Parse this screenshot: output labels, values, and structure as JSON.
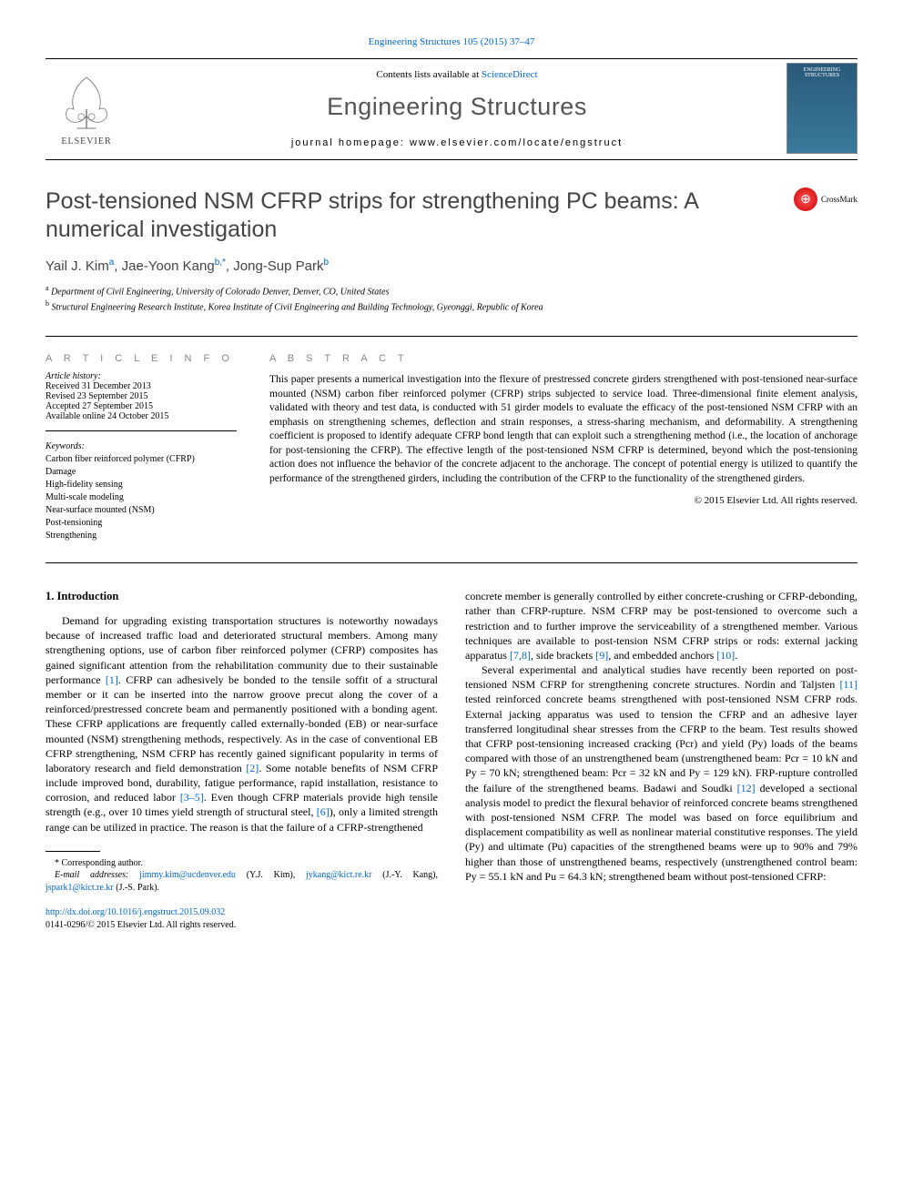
{
  "citation": {
    "text": "Engineering Structures 105 (2015) 37–47",
    "link_color": "#0066cc"
  },
  "header": {
    "contents_prefix": "Contents lists available at ",
    "contents_link": "ScienceDirect",
    "journal_name": "Engineering Structures",
    "homepage_label": "journal homepage: ",
    "homepage_url": "www.elsevier.com/locate/engstruct",
    "elsevier_label": "ELSEVIER",
    "cover_text_top": "ENGINEERING",
    "cover_text_bottom": "STRUCTURES"
  },
  "crossmark": {
    "label": "CrossMark"
  },
  "title": "Post-tensioned NSM CFRP strips for strengthening PC beams: A numerical investigation",
  "authors_html": "Yail J. Kim ",
  "authors": [
    {
      "name": "Yail J. Kim",
      "affil": "a"
    },
    {
      "name": "Jae-Yoon Kang",
      "affil": "b,*",
      "corresponding": true
    },
    {
      "name": "Jong-Sup Park",
      "affil": "b"
    }
  ],
  "affiliations": [
    {
      "marker": "a",
      "text": "Department of Civil Engineering, University of Colorado Denver, Denver, CO, United States"
    },
    {
      "marker": "b",
      "text": "Structural Engineering Research Institute, Korea Institute of Civil Engineering and Building Technology, Gyeonggi, Republic of Korea"
    }
  ],
  "article_info": {
    "heading": "A R T I C L E   I N F O",
    "history_label": "Article history:",
    "history": [
      "Received 31 December 2013",
      "Revised 23 September 2015",
      "Accepted 27 September 2015",
      "Available online 24 October 2015"
    ],
    "keywords_label": "Keywords:",
    "keywords": [
      "Carbon fiber reinforced polymer (CFRP)",
      "Damage",
      "High-fidelity sensing",
      "Multi-scale modeling",
      "Near-surface mounted (NSM)",
      "Post-tensioning",
      "Strengthening"
    ]
  },
  "abstract": {
    "heading": "A B S T R A C T",
    "text": "This paper presents a numerical investigation into the flexure of prestressed concrete girders strengthened with post-tensioned near-surface mounted (NSM) carbon fiber reinforced polymer (CFRP) strips subjected to service load. Three-dimensional finite element analysis, validated with theory and test data, is conducted with 51 girder models to evaluate the efficacy of the post-tensioned NSM CFRP with an emphasis on strengthening schemes, deflection and strain responses, a stress-sharing mechanism, and deformability. A strengthening coefficient is proposed to identify adequate CFRP bond length that can exploit such a strengthening method (i.e., the location of anchorage for post-tensioning the CFRP). The effective length of the post-tensioned NSM CFRP is determined, beyond which the post-tensioning action does not influence the behavior of the concrete adjacent to the anchorage. The concept of potential energy is utilized to quantify the performance of the strengthened girders, including the contribution of the CFRP to the functionality of the strengthened girders.",
    "copyright": "© 2015 Elsevier Ltd. All rights reserved."
  },
  "body": {
    "section1_heading": "1. Introduction",
    "col1_p1": "Demand for upgrading existing transportation structures is noteworthy nowadays because of increased traffic load and deteriorated structural members. Among many strengthening options, use of carbon fiber reinforced polymer (CFRP) composites has gained significant attention from the rehabilitation community due to their sustainable performance [1]. CFRP can adhesively be bonded to the tensile soffit of a structural member or it can be inserted into the narrow groove precut along the cover of a reinforced/prestressed concrete beam and permanently positioned with a bonding agent. These CFRP applications are frequently called externally-bonded (EB) or near-surface mounted (NSM) strengthening methods, respectively. As in the case of conventional EB CFRP strengthening, NSM CFRP has recently gained significant popularity in terms of laboratory research and field demonstration [2]. Some notable benefits of NSM CFRP include improved bond, durability, fatigue performance, rapid installation, resistance to corrosion, and reduced labor [3–5]. Even though CFRP materials provide high tensile strength (e.g., over 10 times yield strength of structural steel, [6]), only a limited strength range can be utilized in practice. The reason is that the failure of a CFRP-strengthened",
    "col2_p1": "concrete member is generally controlled by either concrete-crushing or CFRP-debonding, rather than CFRP-rupture. NSM CFRP may be post-tensioned to overcome such a restriction and to further improve the serviceability of a strengthened member. Various techniques are available to post-tension NSM CFRP strips or rods: external jacking apparatus [7,8], side brackets [9], and embedded anchors [10].",
    "col2_p2": "Several experimental and analytical studies have recently been reported on post-tensioned NSM CFRP for strengthening concrete structures. Nordin and Taljsten [11] tested reinforced concrete beams strengthened with post-tensioned NSM CFRP rods. External jacking apparatus was used to tension the CFRP and an adhesive layer transferred longitudinal shear stresses from the CFRP to the beam. Test results showed that CFRP post-tensioning increased cracking (Pcr) and yield (Py) loads of the beams compared with those of an unstrengthened beam (unstrengthened beam: Pcr = 10 kN and Py = 70 kN; strengthened beam: Pcr = 32 kN and Py = 129 kN). FRP-rupture controlled the failure of the strengthened beams. Badawi and Soudki [12] developed a sectional analysis model to predict the flexural behavior of reinforced concrete beams strengthened with post-tensioned NSM CFRP. The model was based on force equilibrium and displacement compatibility as well as nonlinear material constitutive responses. The yield (Py) and ultimate (Pu) capacities of the strengthened beams were up to 90% and 79% higher than those of unstrengthened beams, respectively (unstrengthened control beam: Py = 55.1 kN and Pu = 64.3 kN; strengthened beam without post-tensioned CFRP:",
    "refs": {
      "r1": "[1]",
      "r2": "[2]",
      "r35": "[3–5]",
      "r6": "[6]",
      "r78": "[7,8]",
      "r9": "[9]",
      "r10": "[10]",
      "r11": "[11]",
      "r12": "[12]"
    }
  },
  "footnotes": {
    "corresponding": "* Corresponding author.",
    "email_label": "E-mail addresses:",
    "emails": [
      {
        "addr": "jimmy.kim@ucdenver.edu",
        "who": "(Y.J. Kim)"
      },
      {
        "addr": "jykang@kict.re.kr",
        "who": "(J.-Y. Kang)"
      },
      {
        "addr": "jspark1@kict.re.kr",
        "who": "(J.-S. Park)"
      }
    ]
  },
  "doi": {
    "url": "http://dx.doi.org/10.1016/j.engstruct.2015.09.032",
    "issn_line": "0141-0296/© 2015 Elsevier Ltd. All rights reserved."
  },
  "colors": {
    "link": "#0066cc",
    "heading_gray": "#888888",
    "title_gray": "#444444",
    "rule": "#000000"
  }
}
